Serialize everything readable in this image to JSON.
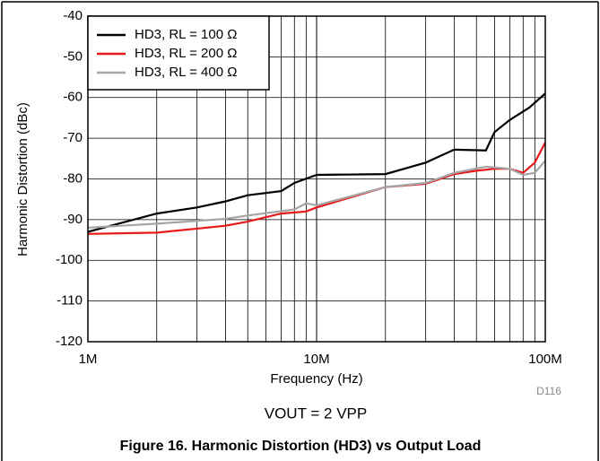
{
  "chart_data": {
    "type": "line",
    "caption": "Figure 16. Harmonic Distortion (HD3) vs Output Load",
    "xlabel": "Frequency (Hz)",
    "ylabel": "Harmonic Distortion (dBc)",
    "annotation": "VOUT = 2 VPP",
    "note": "D116",
    "xscale": "log",
    "xlim": [
      1000000,
      100000000
    ],
    "xticks": [
      {
        "value": 1000000,
        "label": "1M"
      },
      {
        "value": 10000000,
        "label": "10M"
      },
      {
        "value": 100000000,
        "label": "100M"
      }
    ],
    "xgrid_minor": [
      2000000,
      3000000,
      4000000,
      5000000,
      6000000,
      7000000,
      8000000,
      9000000,
      20000000,
      30000000,
      40000000,
      50000000,
      60000000,
      70000000,
      80000000,
      90000000
    ],
    "ylim": [
      -120,
      -40
    ],
    "yticks": [
      -40,
      -50,
      -60,
      -70,
      -80,
      -90,
      -100,
      -110,
      -120
    ],
    "grid": true,
    "legend": "upper left",
    "series": [
      {
        "name": "HD3, RL = 100 Ω",
        "color": "#000000",
        "x": [
          1000000,
          2000000,
          3000000,
          4000000,
          5000000,
          7000000,
          8000000,
          10000000,
          20000000,
          30000000,
          40000000,
          55000000,
          60000000,
          70000000,
          85000000,
          100000000
        ],
        "values": [
          -93,
          -88.5,
          -87,
          -85.5,
          -84,
          -83,
          -81,
          -79,
          -78.8,
          -76,
          -72.8,
          -73,
          -68.5,
          -65.5,
          -62.5,
          -59
        ]
      },
      {
        "name": "HD3, RL = 200 Ω",
        "color": "#e8191b",
        "x": [
          1000000,
          2000000,
          4000000,
          5000000,
          7000000,
          9000000,
          10000000,
          20000000,
          30000000,
          40000000,
          50000000,
          60000000,
          70000000,
          80000000,
          90000000,
          100000000
        ],
        "values": [
          -93.5,
          -93.2,
          -91.5,
          -90.5,
          -88.5,
          -88,
          -87,
          -82,
          -81.2,
          -78.8,
          -78,
          -77.5,
          -77.5,
          -78.5,
          -76,
          -71
        ]
      },
      {
        "name": "HD3, RL = 400 Ω",
        "color": "#a6a6a6",
        "x": [
          1000000,
          2000000,
          4000000,
          5000000,
          8000000,
          9000000,
          10000000,
          20000000,
          30000000,
          40000000,
          55000000,
          70000000,
          80000000,
          90000000,
          100000000
        ],
        "values": [
          -92,
          -91,
          -89.8,
          -89,
          -87.5,
          -86,
          -86.5,
          -82,
          -81,
          -78.5,
          -77,
          -77.5,
          -79,
          -78.5,
          -75.5
        ]
      }
    ]
  }
}
